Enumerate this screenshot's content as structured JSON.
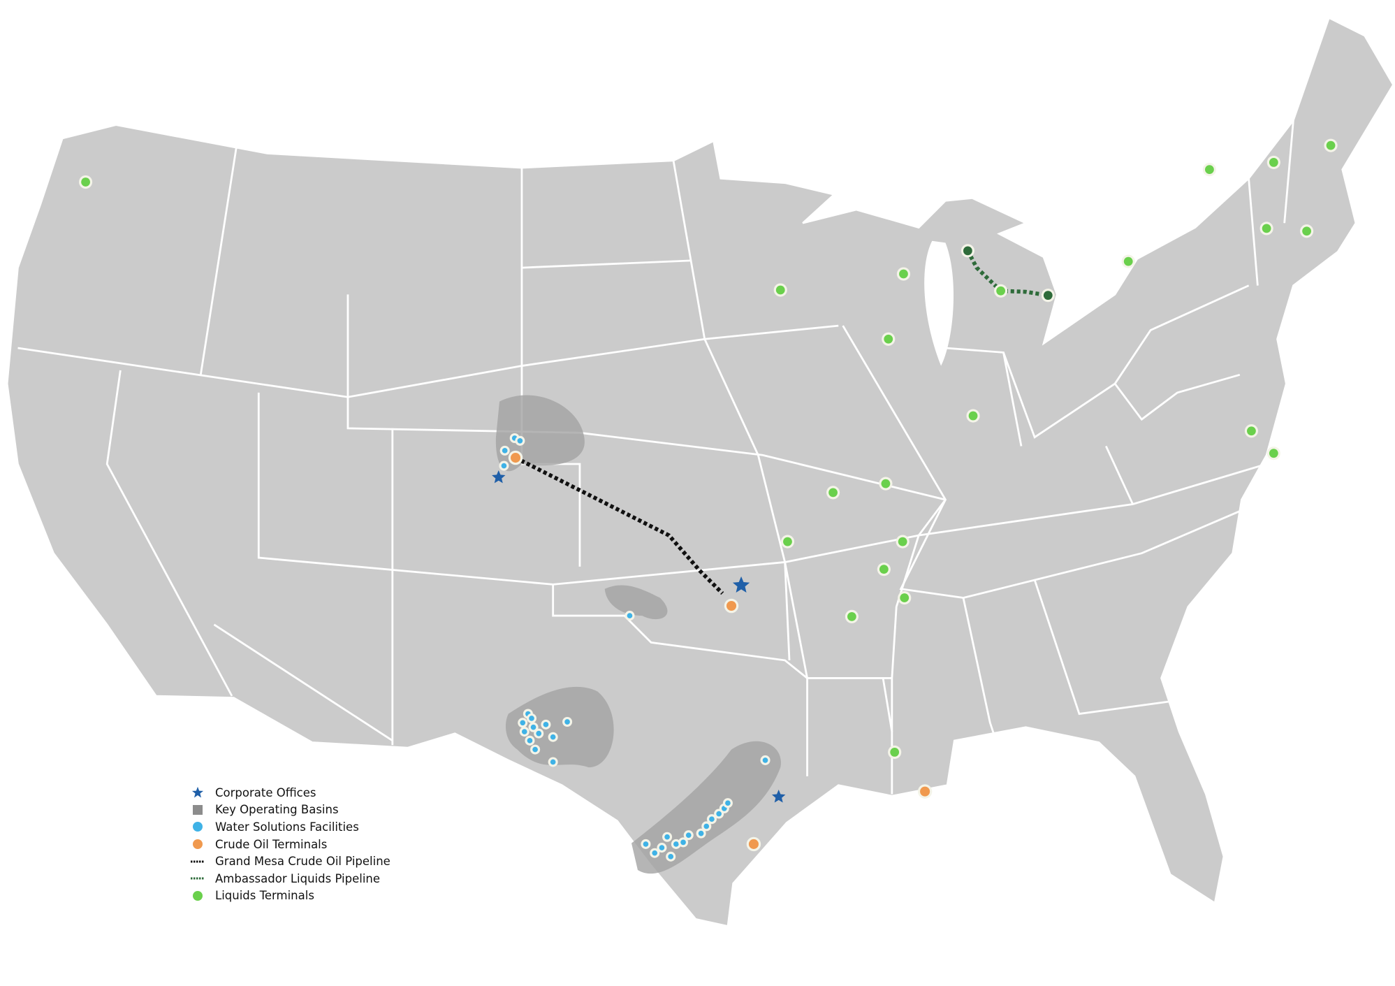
{
  "legend": {
    "items": [
      {
        "label": "Corporate Offices",
        "symbol": "star-icon",
        "color": "#1f5fa8"
      },
      {
        "label": "Key Operating Basins",
        "symbol": "square-icon",
        "color": "#8c8c8c"
      },
      {
        "label": "Water Solutions Facilities",
        "symbol": "circle-icon",
        "color": "#3fb2e6"
      },
      {
        "label": "Crude Oil  Terminals",
        "symbol": "circle-icon",
        "color": "#f0994e"
      },
      {
        "label": "Grand Mesa Crude Oil Pipeline",
        "symbol": "dotted-line-icon",
        "color": "#111111"
      },
      {
        "label": "Ambassador Liquids Pipeline",
        "symbol": "dotted-line-icon",
        "color": "#2e6b3a"
      },
      {
        "label": "Liquids Terminals",
        "symbol": "circle-icon",
        "color": "#6ad04c"
      }
    ]
  },
  "colors": {
    "land": "#cbcbcb",
    "state_border": "#ffffff",
    "basin": "#a3a3a3",
    "background": "#ffffff"
  }
}
